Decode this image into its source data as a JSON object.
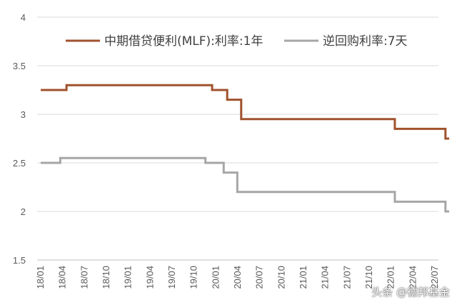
{
  "chart_data": {
    "type": "line",
    "step": true,
    "ylim": [
      1.5,
      4
    ],
    "y_ticks": [
      "1.5",
      "2",
      "2.5",
      "3",
      "3.5",
      "4"
    ],
    "x_tick_labels": [
      "18/01",
      "18/04",
      "18/07",
      "18/10",
      "19/01",
      "19/04",
      "19/07",
      "19/10",
      "20/01",
      "20/04",
      "20/07",
      "20/10",
      "21/01",
      "21/04",
      "21/07",
      "21/10",
      "22/01",
      "22/04",
      "22/07"
    ],
    "grid": "horizontal",
    "legend_position": "top",
    "series": [
      {
        "name": "中期借贷便利(MLF):利率:1年",
        "color": "#a0522d",
        "points": [
          [
            "2018-01-01",
            3.25
          ],
          [
            "2018-04-17",
            3.3
          ],
          [
            "2019-12-16",
            3.25
          ],
          [
            "2020-02-17",
            3.15
          ],
          [
            "2020-04-15",
            2.95
          ],
          [
            "2022-01-17",
            2.85
          ],
          [
            "2022-08-15",
            2.75
          ],
          [
            "2022-08-31",
            2.75
          ]
        ]
      },
      {
        "name": "逆回购利率:7天",
        "color": "#a6a6a6",
        "points": [
          [
            "2018-01-01",
            2.5
          ],
          [
            "2018-03-22",
            2.55
          ],
          [
            "2019-11-18",
            2.5
          ],
          [
            "2020-02-03",
            2.4
          ],
          [
            "2020-03-30",
            2.2
          ],
          [
            "2022-01-17",
            2.1
          ],
          [
            "2022-08-15",
            2.0
          ],
          [
            "2022-08-31",
            2.0
          ]
        ]
      }
    ]
  },
  "watermark": "头条 @德邦基金"
}
